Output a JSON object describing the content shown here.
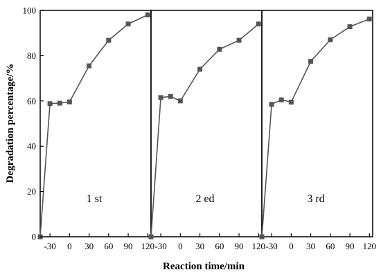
{
  "chart_data": {
    "type": "line",
    "ylabel": "Degradation percentage/%",
    "xlabel": "Reaction time/min",
    "ylim": [
      0,
      100
    ],
    "yticks": [
      0,
      20,
      40,
      60,
      80,
      100
    ],
    "xtick_labels": [
      "-30",
      "0",
      "30",
      "60",
      "90",
      "120"
    ],
    "grid": false,
    "panels": [
      {
        "label": "1 st",
        "x": [
          -45,
          -30,
          -15,
          0,
          30,
          60,
          90,
          120
        ],
        "y": [
          0,
          58.8,
          59.0,
          59.6,
          75.5,
          86.8,
          94.0,
          98.0
        ]
      },
      {
        "label": "2 ed",
        "x": [
          -45,
          -30,
          -15,
          0,
          30,
          60,
          90,
          120
        ],
        "y": [
          0,
          61.5,
          62.0,
          60.0,
          74.0,
          82.8,
          86.8,
          94.0
        ]
      },
      {
        "label": "3 rd",
        "x": [
          -45,
          -30,
          -15,
          0,
          30,
          60,
          90,
          120
        ],
        "y": [
          0,
          58.5,
          60.5,
          59.5,
          77.5,
          87.0,
          92.8,
          96.2
        ]
      }
    ],
    "series_color": "#555555"
  }
}
